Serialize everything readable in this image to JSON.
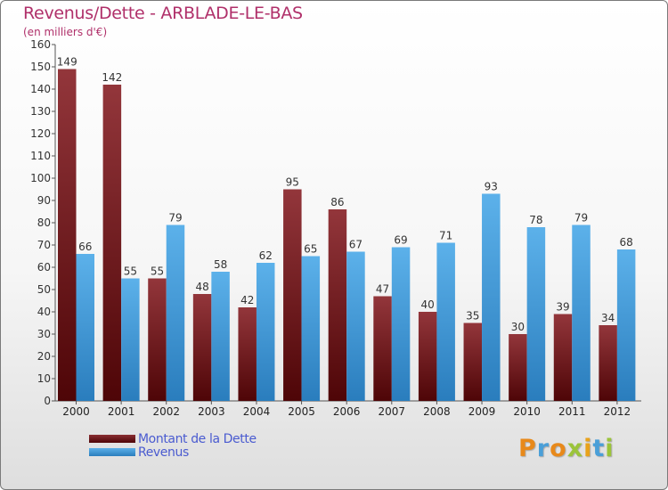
{
  "title": "Revenus/Dette - ARBLADE-LE-BAS",
  "subtitle": "(en milliers d'€)",
  "logo": "Proxiti",
  "colors": {
    "dette_dark": "#5a0a0c",
    "dette_light": "#93363b",
    "revenus_dark": "#2b7fbf",
    "revenus_light": "#5cb1ea",
    "title": "#b0306a",
    "legend_text": "#4a5bd0"
  },
  "chart_data": {
    "type": "bar",
    "title": "Revenus/Dette - ARBLADE-LE-BAS",
    "subtitle": "(en milliers d'€)",
    "xlabel": "",
    "ylabel": "",
    "ylim": [
      0,
      160
    ],
    "ytick_step": 10,
    "grid": false,
    "legend_position": "bottom-left",
    "categories": [
      "2000",
      "2001",
      "2002",
      "2003",
      "2004",
      "2005",
      "2006",
      "2007",
      "2008",
      "2009",
      "2010",
      "2011",
      "2012"
    ],
    "series": [
      {
        "name": "Montant de la Dette",
        "values": [
          149,
          142,
          55,
          48,
          42,
          95,
          86,
          47,
          40,
          35,
          30,
          39,
          34
        ]
      },
      {
        "name": "Revenus",
        "values": [
          66,
          55,
          79,
          58,
          62,
          65,
          67,
          69,
          71,
          93,
          78,
          79,
          68
        ]
      }
    ]
  }
}
